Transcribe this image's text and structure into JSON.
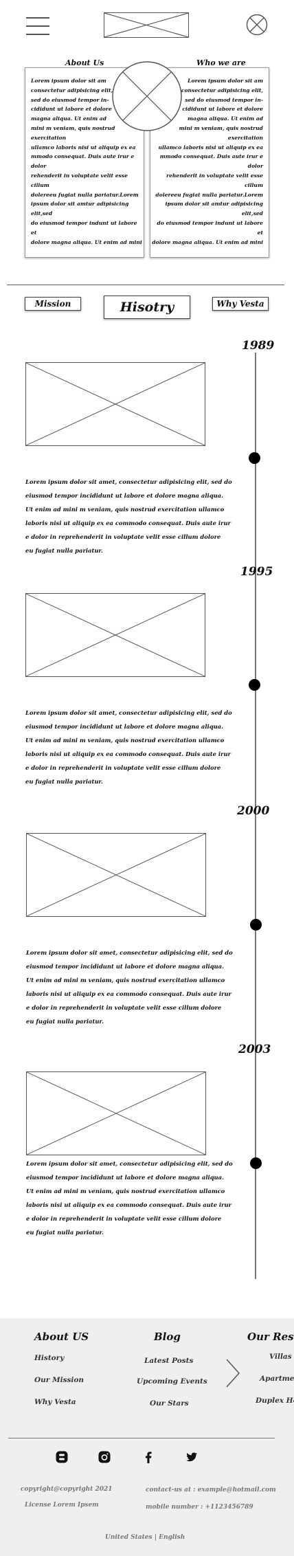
{
  "header": {
    "menu_icon": "hamburger-icon",
    "logo_placeholder": "image-placeholder",
    "close_icon": "close-icon"
  },
  "about": {
    "left_title": "About Us",
    "right_title": "Who we are",
    "left_lines": [
      "Lorem ipsum dolor sit am",
      "consectetur adipisicing elit,",
      "sed do eiusmod tempor in-",
      "cididunt ut labore et dolore",
      "magna aliqua. Ut enim ad",
      "mini m veniam, quis nostrud exercitation",
      "ullamco laboris nisi ut aliquip ex ea",
      "mmodo consequat. Duis aute irur e dolor",
      "rehenderit in voluptate velit esse cillum",
      "dolereeu fugiat nulla pariatur.Lorem",
      "ipsum dolor sit amtur adipisicing elit,sed",
      "do eiusmod tempor indunt ut labore et",
      "dolore magna aliqua. Ut enim ad mini"
    ],
    "right_lines": [
      "Lorem ipsum dolor sit am",
      "consectetur adipisicing elit,",
      "sed do eiusmod tempor in-",
      "cididunt ut labore et dolore",
      "magna aliqua. Ut enim ad",
      "mini m veniam, quis nostrud exercitation",
      "ullamco laboris nisi ut aliquip ex ea",
      "mmodo consequat. Duis aute irur e dolor",
      "rehenderit in voluptate velit esse cillum",
      "dolereeu fugiat nulla pariatur.Lorem",
      "ipsum dolor sit amtur adipisicing elit,sed",
      "do eiusmod tempor indunt ut labore et",
      "dolore magna aliqua. Ut enim ad mini"
    ]
  },
  "tabs": {
    "mission": "Mission",
    "history": "Hisotry",
    "why": "Why Vesta"
  },
  "timeline": [
    {
      "year": "1989",
      "lines": [
        "Lorem ipsum dolor sit amet, consectetur adipisicing elit, sed do",
        "eiusmod tempor incididunt ut labore et dolore magna aliqua.",
        "Ut enim ad mini m veniam, quis nostrud exercitation ullamco",
        " laboris nisi ut aliquip ex ea  commodo consequat. Duis aute irur",
        "e dolor in reprehenderit in voluptate velit esse cillum dolore",
        "eu fugiat nulla pariatur."
      ]
    },
    {
      "year": "1995",
      "lines": [
        "Lorem ipsum dolor sit amet, consectetur adipisicing elit, sed do",
        "eiusmod tempor incididunt ut labore et dolore magna aliqua.",
        "Ut enim ad mini m veniam, quis nostrud exercitation ullamco",
        " laboris nisi ut aliquip ex ea  commodo consequat. Duis aute irur",
        "e dolor in reprehenderit in voluptate velit esse cillum dolore",
        "eu fugiat nulla pariatur."
      ]
    },
    {
      "year": "2000",
      "lines": [
        "Lorem ipsum dolor sit amet, consectetur adipisicing elit, sed do",
        "eiusmod tempor incididunt ut labore et dolore magna aliqua.",
        "Ut enim ad mini m veniam, quis nostrud exercitation ullamco",
        " laboris nisi ut aliquip ex ea  commodo consequat. Duis aute irur",
        "e dolor in reprehenderit in voluptate velit esse cillum dolore",
        "eu fugiat nulla pariatur."
      ]
    },
    {
      "year": "2003",
      "lines": [
        "Lorem ipsum dolor sit amet, consectetur adipisicing elit, sed do",
        "eiusmod tempor incididunt ut labore et dolore magna aliqua.",
        "Ut enim ad mini m veniam, quis nostrud exercitation ullamco",
        " laboris nisi ut aliquip ex ea  commodo consequat. Duis aute irur",
        "e dolor in reprehenderit in voluptate velit esse cillum dolore",
        "eu fugiat nulla pariatur."
      ]
    }
  ],
  "footer": {
    "col1": {
      "title": "About US",
      "links": [
        "History",
        "Our Mission",
        "Why Vesta"
      ]
    },
    "col2": {
      "title": "Blog",
      "links": [
        "Latest Posts",
        "Upcoming Events",
        "Our Stars"
      ]
    },
    "col3": {
      "title": "Our Resid",
      "links": [
        "Villas",
        "Apartmen",
        "Duplex Ho"
      ]
    },
    "next_icon": "chevron-right-icon",
    "social": [
      "blogger-icon",
      "instagram-icon",
      "facebook-icon",
      "twitter-icon"
    ],
    "copyright": "copyright@copyright 2021",
    "license": "License Lorem Ipsem",
    "contact": "contact-us at : example@hotmail.com",
    "mobile": "mobile number : +1123456789",
    "locale": "United States | English"
  }
}
